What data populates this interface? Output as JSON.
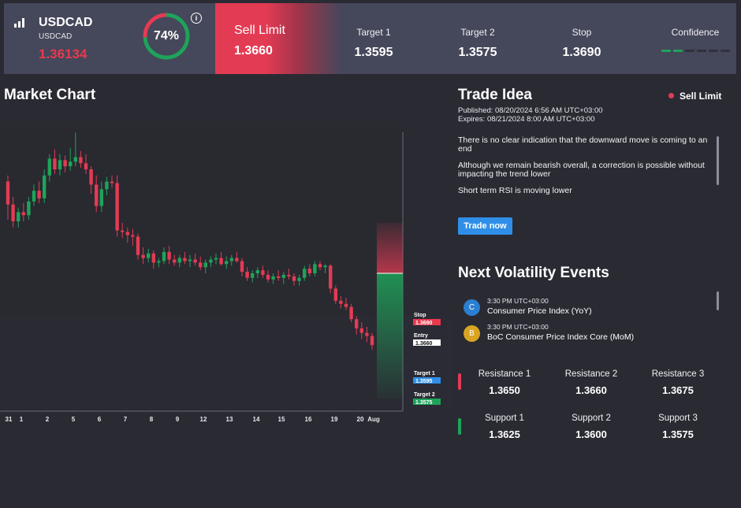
{
  "header": {
    "symbol": "USDCAD",
    "symbol_sub": "USDCAD",
    "price": "1.36134",
    "confidence_gauge": {
      "percent": 74,
      "label": "74%"
    },
    "info_glyph": "i",
    "trade_type": "Sell Limit",
    "entry": "1.3660",
    "targets": [
      {
        "label": "Target 1",
        "value": "1.3595"
      },
      {
        "label": "Target 2",
        "value": "1.3575"
      },
      {
        "label": "Stop",
        "value": "1.3690"
      }
    ],
    "confidence": {
      "label": "Confidence",
      "level": 2,
      "segments": 6
    }
  },
  "market_chart": {
    "title": "Market Chart"
  },
  "chart_data": {
    "type": "candlestick",
    "x_tick_labels": [
      "31",
      "1",
      "2",
      "5",
      "6",
      "7",
      "8",
      "9",
      "12",
      "13",
      "14",
      "15",
      "16",
      "19",
      "20",
      "Aug"
    ],
    "price_range": [
      1.3575,
      1.3745
    ],
    "levels": [
      {
        "label": "Stop",
        "value": "1.3690",
        "color": "#e8394f"
      },
      {
        "label": "Entry",
        "value": "1.3660",
        "color": "#ffffff"
      },
      {
        "label": "Target 1",
        "value": "1.3595",
        "color": "#2f8fe8"
      },
      {
        "label": "Target 2",
        "value": "1.3575",
        "color": "#1fa35a"
      }
    ],
    "candles": [
      [
        1.372,
        1.3724,
        1.3695,
        1.3705
      ],
      [
        1.3705,
        1.371,
        1.369,
        1.3694
      ],
      [
        1.3694,
        1.3703,
        1.369,
        1.37
      ],
      [
        1.37,
        1.3706,
        1.3694,
        1.3698
      ],
      [
        1.3698,
        1.371,
        1.3695,
        1.3707
      ],
      [
        1.3707,
        1.3718,
        1.3704,
        1.3714
      ],
      [
        1.3714,
        1.372,
        1.3706,
        1.3709
      ],
      [
        1.3709,
        1.3728,
        1.3706,
        1.3724
      ],
      [
        1.3724,
        1.3738,
        1.372,
        1.3735
      ],
      [
        1.3735,
        1.3741,
        1.3725,
        1.3728
      ],
      [
        1.3728,
        1.3738,
        1.3724,
        1.3734
      ],
      [
        1.3734,
        1.3737,
        1.3726,
        1.373
      ],
      [
        1.373,
        1.3742,
        1.3727,
        1.3733
      ],
      [
        1.3733,
        1.3752,
        1.373,
        1.3736
      ],
      [
        1.3736,
        1.374,
        1.3729,
        1.3732
      ],
      [
        1.3732,
        1.3738,
        1.3725,
        1.3728
      ],
      [
        1.3728,
        1.373,
        1.3712,
        1.3718
      ],
      [
        1.3718,
        1.3724,
        1.37,
        1.3704
      ],
      [
        1.3704,
        1.372,
        1.37,
        1.3715
      ],
      [
        1.3715,
        1.3723,
        1.3711,
        1.372
      ],
      [
        1.372,
        1.3724,
        1.3716,
        1.3719
      ],
      [
        1.3719,
        1.3724,
        1.3684,
        1.3688
      ],
      [
        1.3688,
        1.3693,
        1.3683,
        1.3687
      ],
      [
        1.3687,
        1.369,
        1.368,
        1.3685
      ],
      [
        1.3685,
        1.3689,
        1.3678,
        1.3684
      ],
      [
        1.3684,
        1.3686,
        1.3669,
        1.3672
      ],
      [
        1.3672,
        1.3677,
        1.3666,
        1.367
      ],
      [
        1.367,
        1.3676,
        1.3667,
        1.3673
      ],
      [
        1.3673,
        1.3675,
        1.3663,
        1.3667
      ],
      [
        1.3667,
        1.367,
        1.3664,
        1.3668
      ],
      [
        1.3668,
        1.3677,
        1.3666,
        1.3674
      ],
      [
        1.3674,
        1.3678,
        1.3666,
        1.3669
      ],
      [
        1.3669,
        1.3672,
        1.3665,
        1.3667
      ],
      [
        1.3667,
        1.3672,
        1.3664,
        1.367
      ],
      [
        1.367,
        1.3674,
        1.3666,
        1.3668
      ],
      [
        1.3668,
        1.3672,
        1.3664,
        1.3669
      ],
      [
        1.3669,
        1.3673,
        1.3665,
        1.3667
      ],
      [
        1.3667,
        1.3671,
        1.3662,
        1.3664
      ],
      [
        1.3664,
        1.3669,
        1.366,
        1.3667
      ],
      [
        1.3667,
        1.3671,
        1.3664,
        1.3669
      ],
      [
        1.3669,
        1.3673,
        1.3666,
        1.367
      ],
      [
        1.367,
        1.3674,
        1.3665,
        1.3666
      ],
      [
        1.3666,
        1.3671,
        1.3663,
        1.3668
      ],
      [
        1.3668,
        1.3672,
        1.3665,
        1.367
      ],
      [
        1.367,
        1.3674,
        1.3667,
        1.3668
      ],
      [
        1.3668,
        1.367,
        1.3658,
        1.3661
      ],
      [
        1.3661,
        1.3664,
        1.3655,
        1.3657
      ],
      [
        1.3657,
        1.3662,
        1.3654,
        1.366
      ],
      [
        1.366,
        1.3664,
        1.3657,
        1.3662
      ],
      [
        1.3662,
        1.3665,
        1.3657,
        1.3659
      ],
      [
        1.3659,
        1.3662,
        1.3654,
        1.3656
      ],
      [
        1.3656,
        1.366,
        1.3653,
        1.3658
      ],
      [
        1.3658,
        1.3662,
        1.3655,
        1.3657
      ],
      [
        1.3657,
        1.3661,
        1.3653,
        1.3659
      ],
      [
        1.3659,
        1.3663,
        1.3656,
        1.3658
      ],
      [
        1.3658,
        1.366,
        1.3652,
        1.3655
      ],
      [
        1.3655,
        1.3659,
        1.3652,
        1.3657
      ],
      [
        1.3657,
        1.3665,
        1.3655,
        1.3663
      ],
      [
        1.3663,
        1.3666,
        1.3658,
        1.366
      ],
      [
        1.366,
        1.3668,
        1.3658,
        1.3666
      ],
      [
        1.3666,
        1.3668,
        1.3662,
        1.3664
      ],
      [
        1.3664,
        1.3666,
        1.366,
        1.3665
      ],
      [
        1.3665,
        1.3666,
        1.3647,
        1.365
      ],
      [
        1.365,
        1.3652,
        1.364,
        1.3642
      ],
      [
        1.3642,
        1.3645,
        1.3637,
        1.364
      ],
      [
        1.364,
        1.3644,
        1.3636,
        1.3638
      ],
      [
        1.3638,
        1.364,
        1.3628,
        1.363
      ],
      [
        1.363,
        1.3632,
        1.362,
        1.3624
      ],
      [
        1.3624,
        1.3628,
        1.3617,
        1.3621
      ],
      [
        1.3621,
        1.3625,
        1.3615,
        1.3619
      ],
      [
        1.3619,
        1.3621,
        1.361,
        1.3613
      ]
    ]
  },
  "trade_idea": {
    "title": "Trade Idea",
    "type": "Sell Limit",
    "published": "Published:  08/20/2024 6:56 AM UTC+03:00",
    "expires": "Expires:  08/21/2024 8:00 AM UTC+03:00",
    "paragraphs": [
      "There is no clear indication that the downward move is coming to an end",
      "Although we remain bearish overall, a correction is possible without impacting the trend lower",
      "Short term RSI is moving lower"
    ],
    "button": "Trade now"
  },
  "volatility": {
    "title": "Next Volatility Events",
    "events": [
      {
        "badge": "C",
        "badge_color": "#2a7fd0",
        "time": "3:30 PM UTC+03:00",
        "name": "Consumer Price Index (YoY)"
      },
      {
        "badge": "B",
        "badge_color": "#d9a423",
        "time": "3:30 PM UTC+03:00",
        "name": "BoC Consumer Price Index Core (MoM)"
      }
    ]
  },
  "levels": {
    "resistance": [
      {
        "label": "Resistance 1",
        "value": "1.3650"
      },
      {
        "label": "Resistance 2",
        "value": "1.3660"
      },
      {
        "label": "Resistance 3",
        "value": "1.3675"
      }
    ],
    "support": [
      {
        "label": "Support 1",
        "value": "1.3625"
      },
      {
        "label": "Support 2",
        "value": "1.3600"
      },
      {
        "label": "Support 3",
        "value": "1.3575"
      }
    ],
    "colors": {
      "resistance": "#e43b54",
      "support": "#1fa35a"
    }
  }
}
